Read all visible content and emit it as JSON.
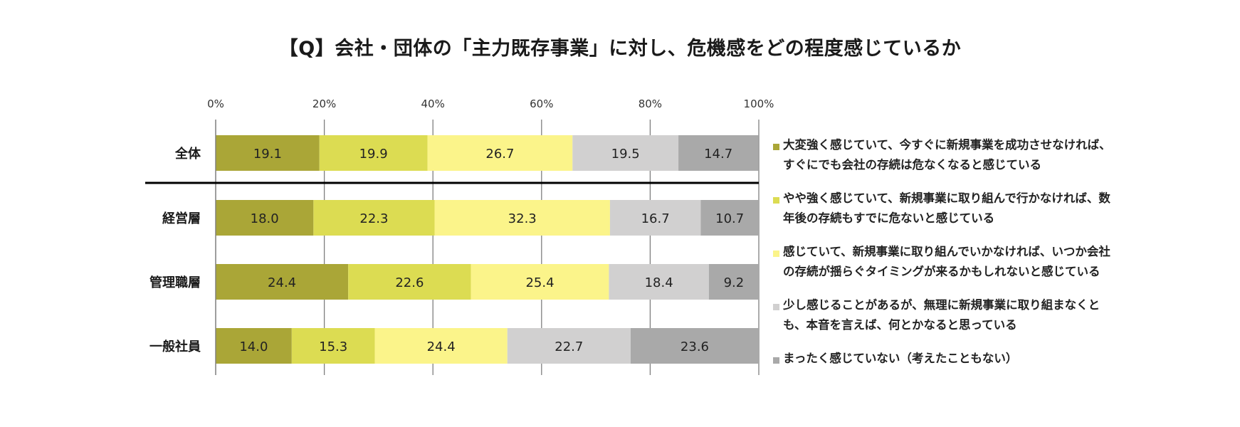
{
  "chart_data": {
    "type": "bar",
    "orientation": "horizontal",
    "stacked": "percent",
    "title": "【Q】会社・団体の「主力既存事業」に対し、危機感をどの程度感じているか",
    "xlabel": "",
    "ylabel": "",
    "xlim": [
      0,
      100
    ],
    "x_ticks": [
      "0%",
      "20%",
      "40%",
      "60%",
      "80%",
      "100%"
    ],
    "x_axis_position": "top",
    "grid": true,
    "legend_position": "right",
    "categories": [
      "全体",
      "経営層",
      "管理職層",
      "一般社員"
    ],
    "series": [
      {
        "name": "大変強く感じていて、今すぐに新規事業を成功させなければ、\nすぐにでも会社の存続は危なくなると感じている",
        "color": "#aaa637",
        "values": [
          19.1,
          18.0,
          24.4,
          14.0
        ]
      },
      {
        "name": "やや強く感じていて、新規事業に取り組んで行かなければ、数\n年後の存続もすでに危ないと感じている",
        "color": "#dcdc52",
        "values": [
          19.9,
          22.3,
          22.6,
          15.3
        ]
      },
      {
        "name": "感じていて、新規事業に取り組んでいかなければ、いつか会社\nの存続が揺らぐタイミングが来るかもしれないと感じている",
        "color": "#fbf48a",
        "values": [
          26.7,
          32.3,
          25.4,
          24.4
        ]
      },
      {
        "name": "少し感じることがあるが、無理に新規事業に取り組まなくと\nも、本音を言えば、何とかなると思っている",
        "color": "#d1d0d0",
        "values": [
          19.5,
          16.7,
          18.4,
          22.7
        ]
      },
      {
        "name": "まったく感じていない（考えたこともない）",
        "color": "#a9a9a9",
        "values": [
          14.7,
          10.7,
          9.2,
          23.6
        ]
      }
    ],
    "separator_after_category": "全体"
  }
}
